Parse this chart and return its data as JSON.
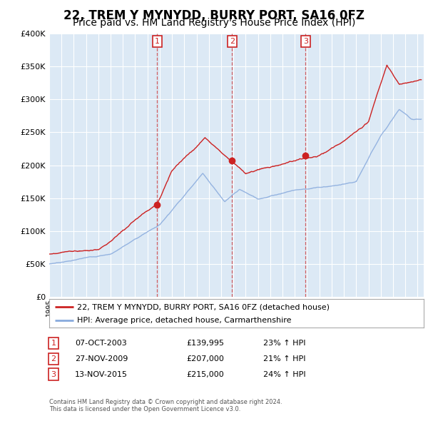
{
  "title": "22, TREM Y MYNYDD, BURRY PORT, SA16 0FZ",
  "subtitle": "Price paid vs. HM Land Registry's House Price Index (HPI)",
  "legend_line1": "22, TREM Y MYNYDD, BURRY PORT, SA16 0FZ (detached house)",
  "legend_line2": "HPI: Average price, detached house, Carmarthenshire",
  "footer1": "Contains HM Land Registry data © Crown copyright and database right 2024.",
  "footer2": "This data is licensed under the Open Government Licence v3.0.",
  "transactions": [
    {
      "num": "1",
      "date": "07-OCT-2003",
      "price": "£139,995",
      "hpi": "23% ↑ HPI",
      "year": 2003.8
    },
    {
      "num": "2",
      "date": "27-NOV-2009",
      "price": "£207,000",
      "hpi": "21% ↑ HPI",
      "year": 2009.9
    },
    {
      "num": "3",
      "date": "13-NOV-2015",
      "price": "£215,000",
      "hpi": "24% ↑ HPI",
      "year": 2015.87
    }
  ],
  "trans_prices": [
    139995,
    207000,
    215000
  ],
  "ylim": [
    0,
    400000
  ],
  "xlim_start": 1995,
  "xlim_end": 2025.5,
  "background_color": "#dce9f5",
  "grid_color": "#ffffff",
  "red_color": "#cc2222",
  "blue_color": "#88aadd",
  "title_fontsize": 12,
  "subtitle_fontsize": 10
}
